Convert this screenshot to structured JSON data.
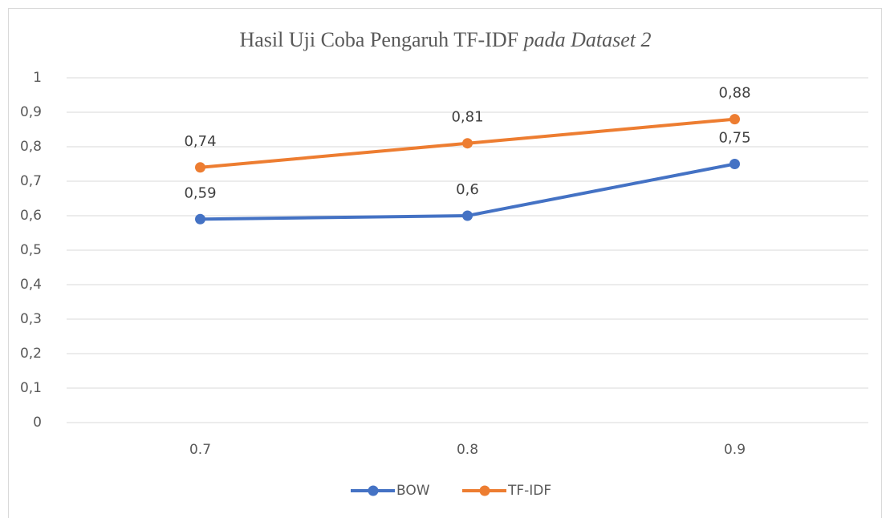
{
  "chart_data": {
    "type": "line",
    "title": [
      "Hasil Uji Coba Pengaruh TF-IDF",
      "pada Dataset 2"
    ],
    "categories": [
      "0.7",
      "0.8",
      "0.9"
    ],
    "series": [
      {
        "name": "BOW",
        "color": "#4472c4",
        "values": [
          0.59,
          0.6,
          0.75
        ],
        "value_labels": [
          "0,59",
          "0,6",
          "0,75"
        ]
      },
      {
        "name": "TF-IDF",
        "color": "#ed7d31",
        "values": [
          0.74,
          0.81,
          0.88
        ],
        "value_labels": [
          "0,74",
          "0,81",
          "0,88"
        ]
      }
    ],
    "ylim": [
      0,
      1
    ],
    "yticks": [
      0,
      {
        "value": 0.1,
        "label": "0,1"
      },
      {
        "value": 0.2,
        "label": "0,2"
      },
      {
        "value": 0.3,
        "label": "0,3"
      },
      {
        "value": 0.4,
        "label": "0,4"
      },
      {
        "value": 0.5,
        "label": "0,5"
      },
      {
        "value": 0.6,
        "label": "0,6"
      },
      {
        "value": 0.7,
        "label": "0,7"
      },
      {
        "value": 0.8,
        "label": "0,8"
      },
      {
        "value": 0.9,
        "label": "0,9"
      },
      1
    ],
    "grid": true,
    "legend": "bottom"
  }
}
